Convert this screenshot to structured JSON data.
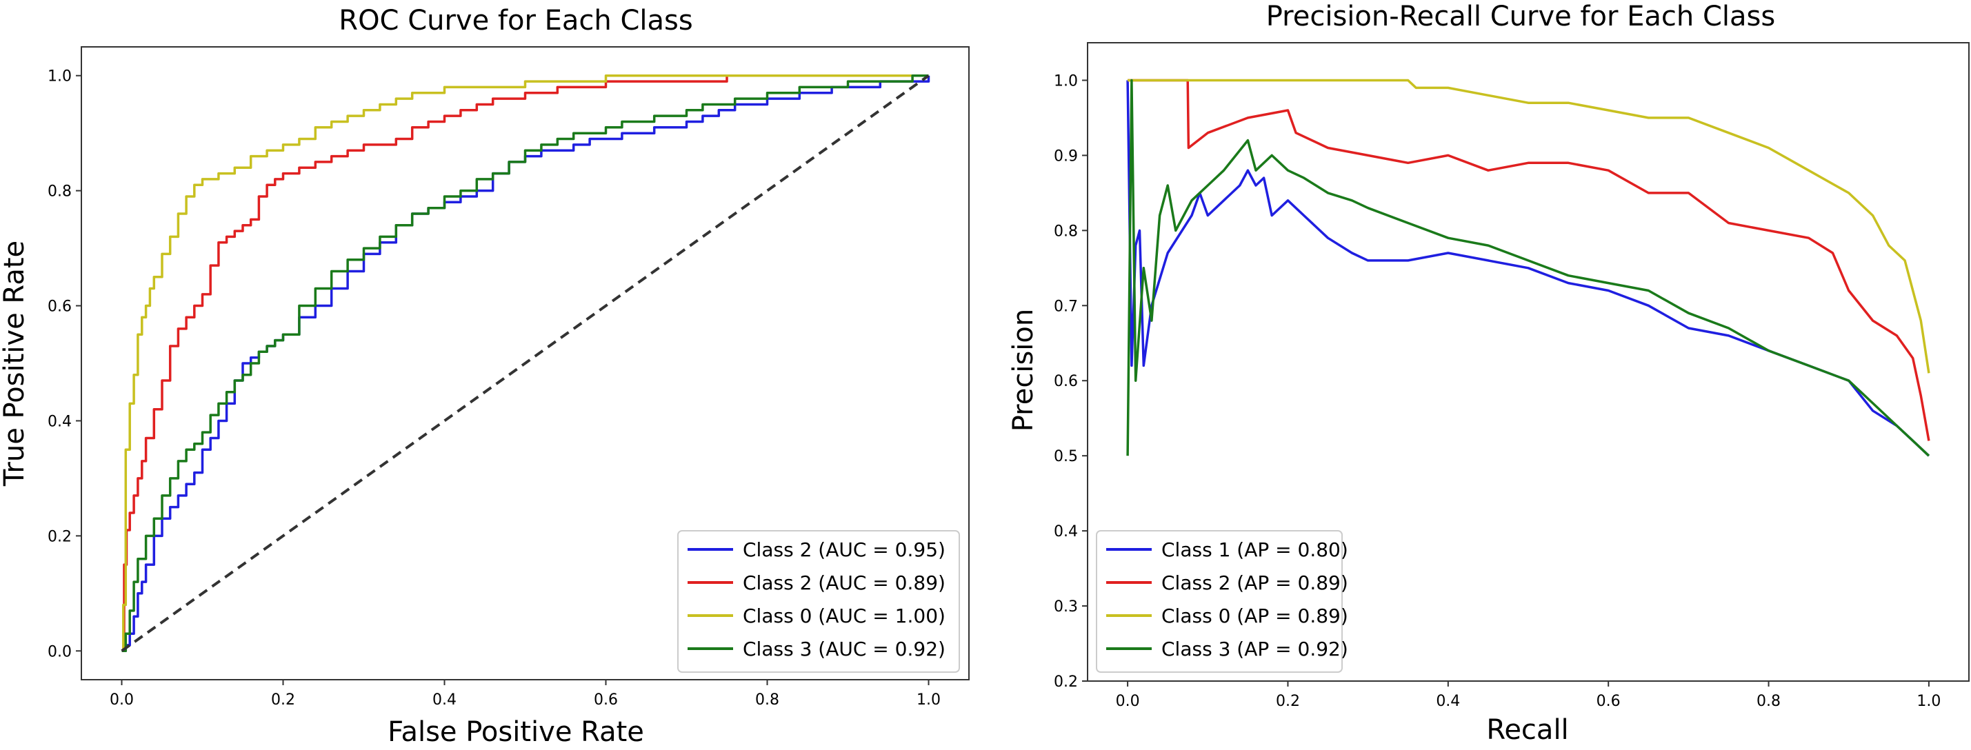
{
  "chart_data": [
    {
      "type": "line",
      "title": "ROC Curve for Each Class",
      "xlabel": "False Positive Rate",
      "ylabel": "True Positive Rate",
      "xlim": [
        -0.05,
        1.05
      ],
      "ylim": [
        -0.05,
        1.05
      ],
      "xticks": [
        0.0,
        0.2,
        0.4,
        0.6,
        0.8,
        1.0
      ],
      "yticks": [
        0.0,
        0.2,
        0.4,
        0.6,
        0.8,
        1.0
      ],
      "xtick_labels": [
        "0.0",
        "0.2",
        "0.4",
        "0.6",
        "0.8",
        "1.0"
      ],
      "ytick_labels": [
        "0.0",
        "0.2",
        "0.4",
        "0.6",
        "0.8",
        "1.0"
      ],
      "grid": false,
      "legend_position": "lower-right",
      "series": [
        {
          "name": "Class 2 (AUC = 0.95)",
          "color": "#1f1fe0",
          "dashed": false,
          "step": true,
          "x": [
            0,
            0.005,
            0.01,
            0.015,
            0.02,
            0.025,
            0.03,
            0.04,
            0.05,
            0.06,
            0.07,
            0.08,
            0.09,
            0.1,
            0.11,
            0.12,
            0.13,
            0.14,
            0.15,
            0.16,
            0.17,
            0.18,
            0.19,
            0.2,
            0.22,
            0.24,
            0.26,
            0.28,
            0.3,
            0.32,
            0.34,
            0.36,
            0.38,
            0.4,
            0.42,
            0.44,
            0.46,
            0.48,
            0.5,
            0.52,
            0.54,
            0.56,
            0.58,
            0.6,
            0.62,
            0.64,
            0.66,
            0.68,
            0.7,
            0.72,
            0.74,
            0.76,
            0.78,
            0.8,
            0.82,
            0.84,
            0.86,
            0.88,
            0.9,
            0.92,
            0.94,
            0.96,
            0.98,
            1.0
          ],
          "y": [
            0,
            0.01,
            0.03,
            0.06,
            0.1,
            0.12,
            0.15,
            0.2,
            0.23,
            0.25,
            0.27,
            0.29,
            0.31,
            0.35,
            0.37,
            0.4,
            0.43,
            0.47,
            0.5,
            0.51,
            0.52,
            0.53,
            0.54,
            0.55,
            0.58,
            0.6,
            0.63,
            0.66,
            0.69,
            0.71,
            0.74,
            0.76,
            0.77,
            0.78,
            0.79,
            0.8,
            0.83,
            0.85,
            0.86,
            0.87,
            0.87,
            0.88,
            0.89,
            0.89,
            0.9,
            0.9,
            0.91,
            0.91,
            0.92,
            0.93,
            0.94,
            0.95,
            0.95,
            0.96,
            0.96,
            0.97,
            0.97,
            0.98,
            0.98,
            0.98,
            0.99,
            0.99,
            0.99,
            1.0
          ]
        },
        {
          "name": "Class 2 (AUC = 0.89)",
          "color": "#e02020",
          "dashed": false,
          "step": true,
          "x": [
            0,
            0.003,
            0.006,
            0.01,
            0.015,
            0.02,
            0.025,
            0.03,
            0.04,
            0.05,
            0.06,
            0.07,
            0.08,
            0.09,
            0.1,
            0.11,
            0.12,
            0.13,
            0.14,
            0.15,
            0.16,
            0.17,
            0.18,
            0.19,
            0.2,
            0.21,
            0.22,
            0.24,
            0.26,
            0.28,
            0.3,
            0.32,
            0.34,
            0.36,
            0.38,
            0.4,
            0.42,
            0.44,
            0.46,
            0.48,
            0.5,
            0.52,
            0.54,
            0.56,
            0.58,
            0.6,
            0.65,
            0.7,
            0.75,
            0.8,
            0.85,
            0.9,
            0.95,
            1.0
          ],
          "y": [
            0,
            0.15,
            0.21,
            0.24,
            0.27,
            0.3,
            0.33,
            0.37,
            0.42,
            0.47,
            0.53,
            0.56,
            0.58,
            0.6,
            0.62,
            0.67,
            0.71,
            0.72,
            0.73,
            0.74,
            0.75,
            0.79,
            0.81,
            0.82,
            0.83,
            0.83,
            0.84,
            0.85,
            0.86,
            0.87,
            0.88,
            0.88,
            0.89,
            0.91,
            0.92,
            0.93,
            0.94,
            0.95,
            0.96,
            0.96,
            0.97,
            0.97,
            0.98,
            0.98,
            0.98,
            0.99,
            0.99,
            0.99,
            1.0,
            1.0,
            1.0,
            1.0,
            1.0,
            1.0
          ]
        },
        {
          "name": "Class 0 (AUC = 1.00)",
          "color": "#c8c020",
          "dashed": false,
          "step": true,
          "x": [
            0,
            0.002,
            0.005,
            0.01,
            0.015,
            0.02,
            0.025,
            0.03,
            0.035,
            0.04,
            0.05,
            0.06,
            0.07,
            0.08,
            0.09,
            0.1,
            0.12,
            0.14,
            0.16,
            0.18,
            0.2,
            0.22,
            0.24,
            0.26,
            0.28,
            0.3,
            0.32,
            0.34,
            0.36,
            0.4,
            0.45,
            0.5,
            0.55,
            0.6,
            0.7,
            0.8,
            0.9,
            1.0
          ],
          "y": [
            0.0,
            0.08,
            0.35,
            0.43,
            0.48,
            0.55,
            0.58,
            0.6,
            0.63,
            0.65,
            0.69,
            0.72,
            0.76,
            0.79,
            0.81,
            0.82,
            0.83,
            0.84,
            0.86,
            0.87,
            0.88,
            0.89,
            0.91,
            0.92,
            0.93,
            0.94,
            0.95,
            0.96,
            0.97,
            0.98,
            0.98,
            0.99,
            0.99,
            1.0,
            1.0,
            1.0,
            1.0,
            1.0
          ]
        },
        {
          "name": "Class 3 (AUC = 0.92)",
          "color": "#1a7a1a",
          "dashed": false,
          "step": true,
          "x": [
            0,
            0.005,
            0.01,
            0.015,
            0.02,
            0.03,
            0.04,
            0.05,
            0.06,
            0.07,
            0.08,
            0.09,
            0.1,
            0.11,
            0.12,
            0.13,
            0.14,
            0.15,
            0.16,
            0.17,
            0.18,
            0.19,
            0.2,
            0.22,
            0.24,
            0.26,
            0.28,
            0.3,
            0.32,
            0.34,
            0.36,
            0.38,
            0.4,
            0.42,
            0.44,
            0.46,
            0.48,
            0.5,
            0.52,
            0.54,
            0.56,
            0.58,
            0.6,
            0.62,
            0.64,
            0.66,
            0.68,
            0.7,
            0.72,
            0.74,
            0.76,
            0.78,
            0.8,
            0.82,
            0.84,
            0.86,
            0.88,
            0.9,
            0.92,
            0.94,
            0.96,
            0.98,
            1.0
          ],
          "y": [
            0,
            0.03,
            0.07,
            0.12,
            0.16,
            0.2,
            0.23,
            0.27,
            0.3,
            0.33,
            0.35,
            0.36,
            0.38,
            0.41,
            0.43,
            0.45,
            0.47,
            0.48,
            0.5,
            0.52,
            0.53,
            0.54,
            0.55,
            0.6,
            0.63,
            0.66,
            0.68,
            0.7,
            0.72,
            0.74,
            0.76,
            0.77,
            0.79,
            0.8,
            0.82,
            0.83,
            0.85,
            0.87,
            0.88,
            0.89,
            0.9,
            0.9,
            0.91,
            0.92,
            0.92,
            0.93,
            0.93,
            0.94,
            0.95,
            0.95,
            0.96,
            0.96,
            0.97,
            0.97,
            0.98,
            0.98,
            0.98,
            0.99,
            0.99,
            0.99,
            0.99,
            1.0,
            1.0
          ]
        },
        {
          "name": "chance",
          "color": "#333333",
          "dashed": true,
          "step": false,
          "legend": false,
          "x": [
            0,
            1
          ],
          "y": [
            0,
            1
          ]
        }
      ]
    },
    {
      "type": "line",
      "title": "Precision-Recall Curve for Each Class",
      "xlabel": "Recall",
      "ylabel": "Precision",
      "xlim": [
        -0.05,
        1.05
      ],
      "ylim": [
        0.2,
        1.05
      ],
      "xticks": [
        0.0,
        0.2,
        0.4,
        0.6,
        0.8,
        1.0
      ],
      "yticks": [
        0.2,
        0.3,
        0.4,
        0.5,
        0.6,
        0.7,
        0.8,
        0.9,
        1.0
      ],
      "xtick_labels": [
        "0.0",
        "0.2",
        "0.4",
        "0.6",
        "0.8",
        "1.0"
      ],
      "ytick_labels": [
        "0.2",
        "0.3",
        "0.4",
        "0.5",
        "0.6",
        "0.7",
        "0.8",
        "0.9",
        "1.0"
      ],
      "grid": false,
      "legend_position": "lower-left",
      "series": [
        {
          "name": "Class 1 (AP = 0.80)",
          "color": "#1f1fe0",
          "dashed": false,
          "step": false,
          "x": [
            0.0,
            0.005,
            0.01,
            0.015,
            0.02,
            0.03,
            0.05,
            0.08,
            0.09,
            0.1,
            0.12,
            0.14,
            0.15,
            0.16,
            0.17,
            0.18,
            0.2,
            0.22,
            0.25,
            0.28,
            0.3,
            0.35,
            0.4,
            0.45,
            0.5,
            0.55,
            0.6,
            0.65,
            0.7,
            0.75,
            0.8,
            0.85,
            0.9,
            0.93,
            0.96,
            0.98,
            1.0
          ],
          "y": [
            1.0,
            0.62,
            0.78,
            0.8,
            0.62,
            0.7,
            0.77,
            0.82,
            0.85,
            0.82,
            0.84,
            0.86,
            0.88,
            0.86,
            0.87,
            0.82,
            0.84,
            0.82,
            0.79,
            0.77,
            0.76,
            0.76,
            0.77,
            0.76,
            0.75,
            0.73,
            0.72,
            0.7,
            0.67,
            0.66,
            0.64,
            0.62,
            0.6,
            0.56,
            0.54,
            0.52,
            0.5
          ]
        },
        {
          "name": "Class 2 (AP = 0.89)",
          "color": "#e02020",
          "dashed": false,
          "step": false,
          "x": [
            0.0,
            0.05,
            0.075,
            0.076,
            0.1,
            0.15,
            0.2,
            0.21,
            0.25,
            0.3,
            0.35,
            0.4,
            0.45,
            0.5,
            0.55,
            0.6,
            0.65,
            0.7,
            0.75,
            0.8,
            0.85,
            0.88,
            0.9,
            0.93,
            0.96,
            0.98,
            0.99,
            1.0
          ],
          "y": [
            1.0,
            1.0,
            1.0,
            0.91,
            0.93,
            0.95,
            0.96,
            0.93,
            0.91,
            0.9,
            0.89,
            0.9,
            0.88,
            0.89,
            0.89,
            0.88,
            0.85,
            0.85,
            0.81,
            0.8,
            0.79,
            0.77,
            0.72,
            0.68,
            0.66,
            0.63,
            0.58,
            0.52
          ]
        },
        {
          "name": "Class 0 (AP = 0.89)",
          "color": "#c8c020",
          "dashed": false,
          "step": false,
          "x": [
            0.0,
            0.1,
            0.2,
            0.3,
            0.35,
            0.36,
            0.4,
            0.45,
            0.5,
            0.55,
            0.6,
            0.65,
            0.7,
            0.75,
            0.8,
            0.85,
            0.9,
            0.93,
            0.95,
            0.97,
            0.98,
            0.99,
            1.0
          ],
          "y": [
            1.0,
            1.0,
            1.0,
            1.0,
            1.0,
            0.99,
            0.99,
            0.98,
            0.97,
            0.97,
            0.96,
            0.95,
            0.95,
            0.93,
            0.91,
            0.88,
            0.85,
            0.82,
            0.78,
            0.76,
            0.72,
            0.68,
            0.61
          ]
        },
        {
          "name": "Class 3 (AP = 0.92)",
          "color": "#1a7a1a",
          "dashed": false,
          "step": false,
          "x": [
            0.0,
            0.005,
            0.01,
            0.02,
            0.03,
            0.04,
            0.05,
            0.06,
            0.08,
            0.1,
            0.12,
            0.15,
            0.16,
            0.18,
            0.2,
            0.22,
            0.25,
            0.28,
            0.3,
            0.35,
            0.4,
            0.45,
            0.5,
            0.55,
            0.6,
            0.65,
            0.7,
            0.75,
            0.8,
            0.85,
            0.9,
            0.93,
            0.96,
            0.98,
            1.0
          ],
          "y": [
            0.5,
            1.0,
            0.6,
            0.75,
            0.68,
            0.82,
            0.86,
            0.8,
            0.84,
            0.86,
            0.88,
            0.92,
            0.88,
            0.9,
            0.88,
            0.87,
            0.85,
            0.84,
            0.83,
            0.81,
            0.79,
            0.78,
            0.76,
            0.74,
            0.73,
            0.72,
            0.69,
            0.67,
            0.64,
            0.62,
            0.6,
            0.57,
            0.54,
            0.52,
            0.5
          ]
        }
      ]
    }
  ]
}
